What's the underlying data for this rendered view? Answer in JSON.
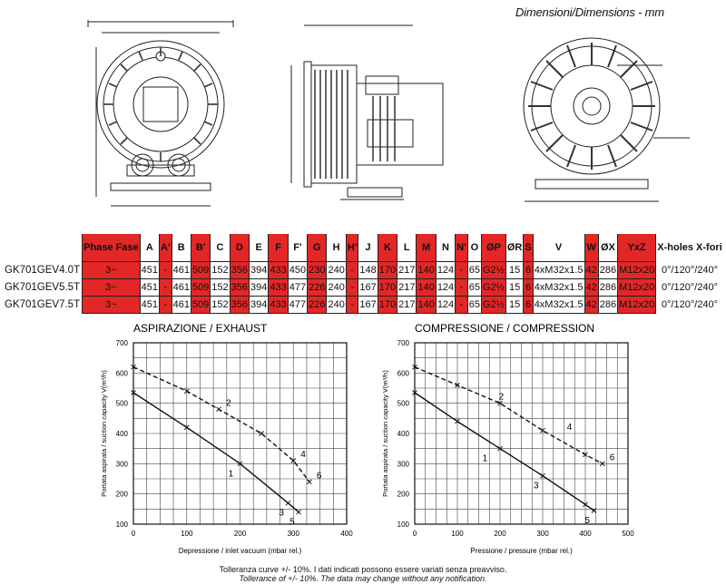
{
  "header": {
    "title_it": "Dimensioni/",
    "title_en": "Dimensions - mm"
  },
  "table": {
    "columns": [
      "Phase Fase",
      "A",
      "A'",
      "B",
      "B'",
      "C",
      "D",
      "E",
      "F",
      "F'",
      "G",
      "H",
      "H'",
      "J",
      "K",
      "L",
      "M",
      "N",
      "N'",
      "O",
      "ØP",
      "ØR",
      "S",
      "V",
      "W",
      "ØX",
      "YxZ",
      "X-holes X-fori"
    ],
    "red_columns": [
      0,
      2,
      4,
      6,
      8,
      10,
      12,
      14,
      16,
      18,
      20,
      22,
      24,
      26
    ],
    "rows": [
      {
        "model": "GK701GEV4.0T",
        "cells": [
          "3~",
          "451",
          "-",
          "461",
          "509",
          "152",
          "356",
          "394",
          "433",
          "450",
          "230",
          "240",
          "-",
          "148",
          "170",
          "217",
          "140",
          "124",
          "-",
          "65",
          "G2½",
          "15",
          "6",
          "4xM32x1.5",
          "42",
          "286",
          "M12x20",
          "0°/120°/240°"
        ]
      },
      {
        "model": "GK701GEV5.5T",
        "cells": [
          "3~",
          "451",
          "-",
          "461",
          "509",
          "152",
          "356",
          "394",
          "433",
          "477",
          "226",
          "240",
          "-",
          "167",
          "170",
          "217",
          "140",
          "124",
          "-",
          "65",
          "G2½",
          "15",
          "6",
          "4xM32x1.5",
          "42",
          "286",
          "M12x20",
          "0°/120°/240°"
        ]
      },
      {
        "model": "GK701GEV7.5T",
        "cells": [
          "3~",
          "451",
          "-",
          "461",
          "509",
          "152",
          "356",
          "394",
          "433",
          "477",
          "226",
          "240",
          "-",
          "167",
          "170",
          "217",
          "140",
          "124",
          "-",
          "65",
          "G2½",
          "15",
          "6",
          "4xM32x1.5",
          "42",
          "286",
          "M12x20",
          "0°/120°/240°"
        ]
      }
    ]
  },
  "chart_data": [
    {
      "type": "line",
      "title": "ASPIRAZIONE /  EXHAUST",
      "xlabel": "Depressione / inlet vacuum (mbar rel.)",
      "ylabel": "Portata aspirata / suction capacity V(m³/h)",
      "xlim": [
        0,
        400
      ],
      "ylim": [
        100,
        700
      ],
      "xticks": [
        0,
        100,
        200,
        300,
        400
      ],
      "yticks": [
        100,
        200,
        300,
        400,
        500,
        600,
        700
      ],
      "grid": true,
      "series": [
        {
          "name": "1",
          "style": "solid",
          "points": [
            [
              0,
              535
            ],
            [
              100,
              420
            ],
            [
              200,
              300
            ],
            [
              290,
              170
            ],
            [
              310,
              140
            ]
          ]
        },
        {
          "name": "2",
          "style": "dashed",
          "points": [
            [
              0,
              620
            ],
            [
              100,
              540
            ],
            [
              160,
              480
            ],
            [
              240,
              400
            ],
            [
              300,
              310
            ],
            [
              330,
              240
            ]
          ]
        }
      ],
      "markers": [
        {
          "label": "1",
          "x": 195,
          "y": 300
        },
        {
          "label": "2",
          "x": 160,
          "y": 480
        },
        {
          "label": "3",
          "x": 290,
          "y": 170
        },
        {
          "label": "4",
          "x": 300,
          "y": 310
        },
        {
          "label": "5",
          "x": 310,
          "y": 140
        },
        {
          "label": "6",
          "x": 330,
          "y": 240
        }
      ]
    },
    {
      "type": "line",
      "title": "COMPRESSIONE /  COMPRESSION",
      "xlabel": "Pressione / pressure (mbar rel.)",
      "ylabel": "Portata aspirata / suction capacity V(m³/h)",
      "xlim": [
        0,
        500
      ],
      "ylim": [
        100,
        700
      ],
      "xticks": [
        0,
        100,
        200,
        300,
        400,
        500
      ],
      "yticks": [
        100,
        200,
        300,
        400,
        500,
        600,
        700
      ],
      "grid": true,
      "series": [
        {
          "name": "1",
          "style": "solid",
          "points": [
            [
              0,
              535
            ],
            [
              100,
              440
            ],
            [
              200,
              350
            ],
            [
              300,
              260
            ],
            [
              400,
              165
            ],
            [
              420,
              145
            ]
          ]
        },
        {
          "name": "2",
          "style": "dashed",
          "points": [
            [
              0,
              620
            ],
            [
              100,
              560
            ],
            [
              200,
              500
            ],
            [
              300,
              410
            ],
            [
              400,
              330
            ],
            [
              440,
              300
            ]
          ]
        }
      ],
      "markers": [
        {
          "label": "1",
          "x": 180,
          "y": 350
        },
        {
          "label": "2",
          "x": 180,
          "y": 500
        },
        {
          "label": "3",
          "x": 300,
          "y": 260
        },
        {
          "label": "4",
          "x": 340,
          "y": 400
        },
        {
          "label": "5",
          "x": 420,
          "y": 145
        },
        {
          "label": "6",
          "x": 440,
          "y": 300
        }
      ]
    }
  ],
  "footer": {
    "line1": "Tolleranza curve +/- 10%. I dati indicati possono essere variati senza preavviso.",
    "line2": "Tollerance of +/- 10%. The data may change without any notification."
  }
}
